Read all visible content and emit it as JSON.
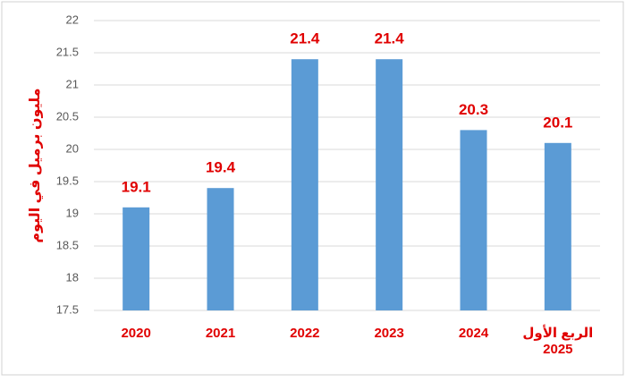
{
  "chart_data": {
    "type": "bar",
    "y_label": "مليون برميل في اليوم",
    "categories": [
      "2020",
      "2021",
      "2022",
      "2023",
      "2024",
      "الربع الأول 2025"
    ],
    "values": [
      19.1,
      19.4,
      21.4,
      21.4,
      20.3,
      20.1
    ],
    "color": "#5b9bd5",
    "ylim": [
      17.5,
      22
    ],
    "yticks": [
      17.5,
      18,
      18.5,
      19,
      19.5,
      20,
      20.5,
      21,
      21.5,
      22
    ],
    "grid": true
  }
}
